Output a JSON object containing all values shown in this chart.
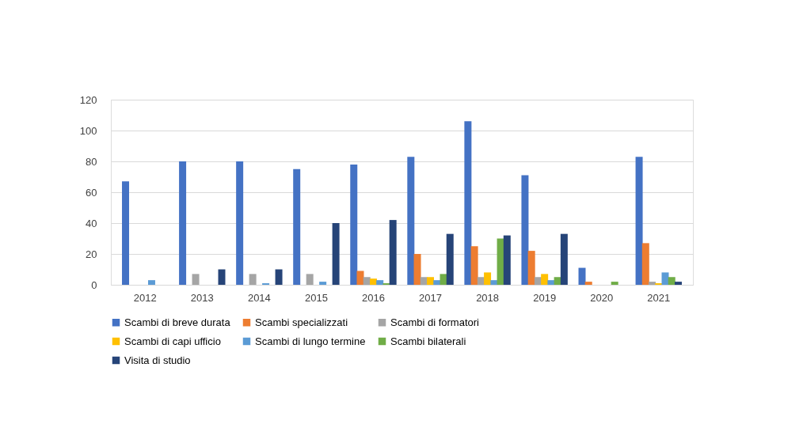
{
  "chart_data": {
    "type": "bar",
    "categories": [
      "2012",
      "2013",
      "2014",
      "2015",
      "2016",
      "2017",
      "2018",
      "2019",
      "2020",
      "2021"
    ],
    "series": [
      {
        "name": "Scambi di breve durata",
        "color": "#4472c4",
        "values": [
          67,
          80,
          80,
          75,
          78,
          83,
          106,
          71,
          11,
          83
        ]
      },
      {
        "name": "Scambi specializzati",
        "color": "#ed7d31",
        "values": [
          0,
          0,
          0,
          0,
          9,
          20,
          25,
          22,
          2,
          27
        ]
      },
      {
        "name": "Scambi di formatori",
        "color": "#a5a5a5",
        "values": [
          0,
          7,
          7,
          7,
          5,
          5,
          5,
          5,
          0,
          2
        ]
      },
      {
        "name": "Scambi di capi ufficio",
        "color": "#ffc000",
        "values": [
          0,
          0,
          0,
          0,
          4,
          5,
          8,
          7,
          0,
          1
        ]
      },
      {
        "name": "Scambi di lungo termine",
        "color": "#5b9bd5",
        "values": [
          3,
          0,
          1,
          2,
          3,
          3,
          3,
          3,
          0,
          8
        ]
      },
      {
        "name": "Scambi bilaterali",
        "color": "#70ad47",
        "values": [
          0,
          0,
          0,
          0,
          1,
          7,
          30,
          5,
          2,
          5
        ]
      },
      {
        "name": "Visita di studio",
        "color": "#264478",
        "values": [
          0,
          10,
          10,
          40,
          42,
          33,
          32,
          33,
          0,
          2
        ]
      }
    ],
    "ylim": [
      0,
      120
    ],
    "yticks": [
      0,
      20,
      40,
      60,
      80,
      100,
      120
    ],
    "grid": "y",
    "legend": "bottom"
  }
}
